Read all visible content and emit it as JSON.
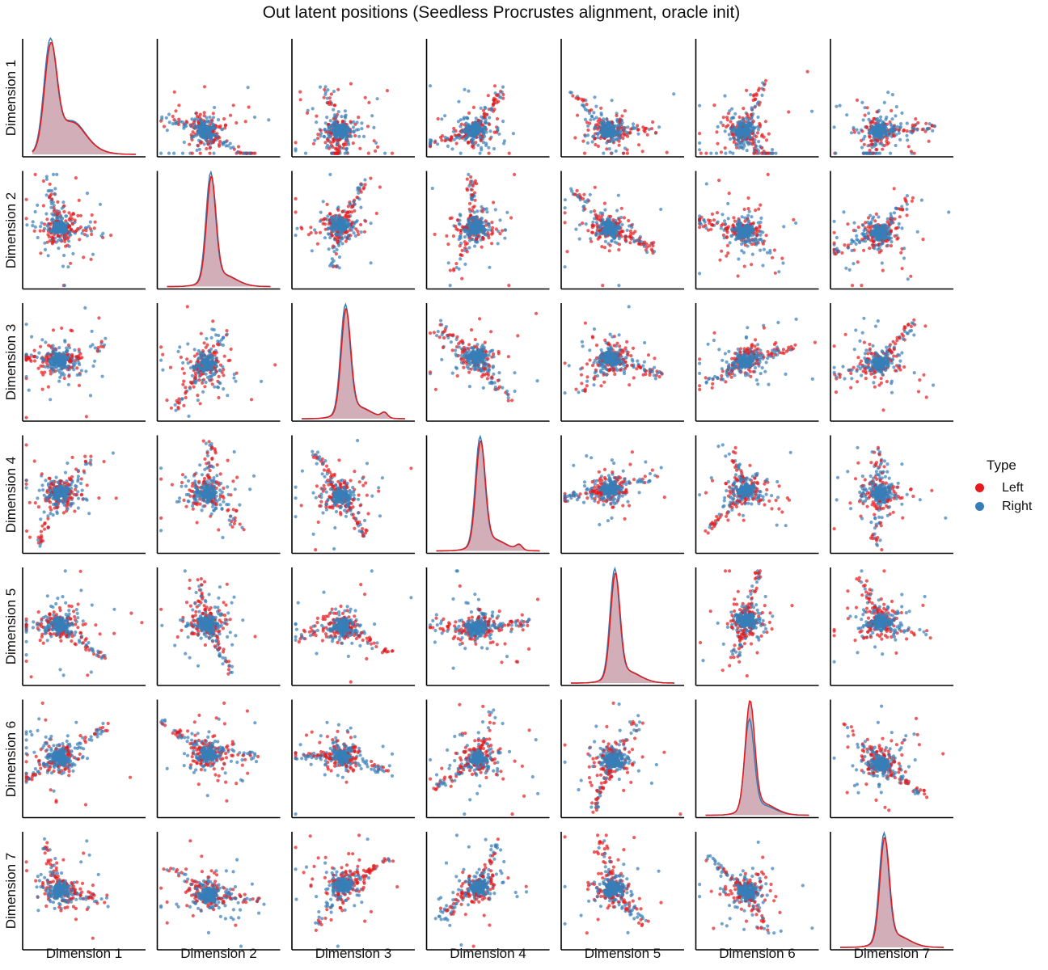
{
  "title": "Out latent positions (Seedless Procrustes alignment, oracle init)",
  "variables": [
    "Dimension 1",
    "Dimension 2",
    "Dimension 3",
    "Dimension 4",
    "Dimension 5",
    "Dimension 6",
    "Dimension 7"
  ],
  "legend": {
    "title": "Type",
    "items": [
      {
        "label": "Left",
        "color": "#e41a1c"
      },
      {
        "label": "Right",
        "color": "#377eb8"
      }
    ]
  },
  "chart_data": {
    "type": "scatter",
    "kind": "pairplot",
    "title": "Out latent positions (Seedless Procrustes alignment, oracle init)",
    "variables": [
      "Dimension 1",
      "Dimension 2",
      "Dimension 3",
      "Dimension 4",
      "Dimension 5",
      "Dimension 6",
      "Dimension 7"
    ],
    "hue": "Type",
    "series": [
      {
        "name": "Left",
        "color": "#e41a1c"
      },
      {
        "name": "Right",
        "color": "#377eb8"
      }
    ],
    "diagonal": "kde",
    "off_diagonal": "scatter",
    "axis_ticks": "none",
    "legend_position": "right",
    "grid": false
  }
}
